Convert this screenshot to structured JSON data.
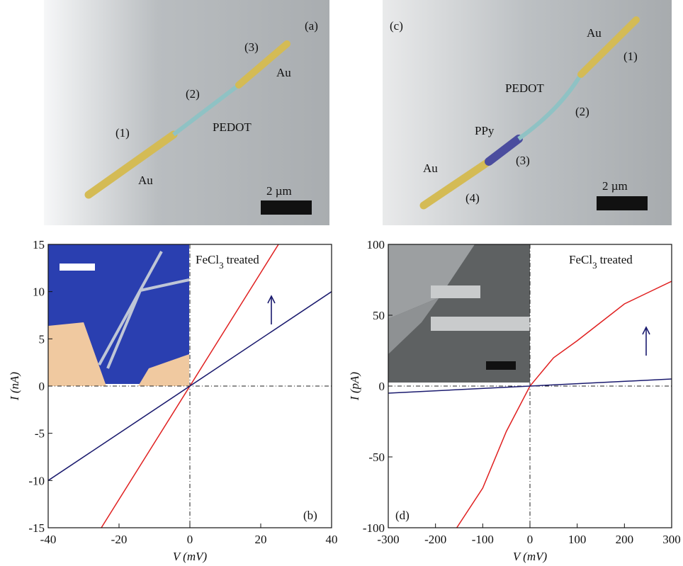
{
  "images": [
    {
      "panel": "(a)",
      "labels": [
        "(3)",
        "Au",
        "(2)",
        "PEDOT",
        "(1)",
        "Au"
      ],
      "scale_bar": "2 µm"
    },
    {
      "panel": "(c)",
      "labels": [
        "Au",
        "(1)",
        "PEDOT",
        "(2)",
        "PPy",
        "(3)",
        "Au",
        "(4)"
      ],
      "scale_bar": "2 µm"
    }
  ],
  "chart_data": [
    {
      "type": "line",
      "panel": "(b)",
      "x_label": "V (mV)",
      "y_label": "I (nA)",
      "annotation": {
        "text": "FeCl",
        "subscript": "3",
        "suffix": "treated"
      },
      "xlim": [
        -40,
        40
      ],
      "ylim": [
        -15,
        15
      ],
      "xticks": [
        -40,
        -20,
        0,
        20,
        40
      ],
      "yticks": [
        -15,
        -10,
        -5,
        0,
        5,
        10,
        15
      ],
      "series": [
        {
          "color": "#e02020",
          "x": [
            -25,
            25
          ],
          "values": [
            -15,
            15
          ]
        },
        {
          "color": "#1a1a6e",
          "x": [
            -40,
            40
          ],
          "values": [
            -10,
            10
          ]
        }
      ]
    },
    {
      "type": "line",
      "panel": "(d)",
      "x_label": "V (mV)",
      "y_label": "I (pA)",
      "annotation": {
        "text": "FeCl",
        "subscript": "3",
        "suffix": "treated"
      },
      "xlim": [
        -300,
        300
      ],
      "ylim": [
        -100,
        100
      ],
      "xticks": [
        -300,
        -200,
        -100,
        0,
        100,
        200,
        300
      ],
      "yticks": [
        -100,
        -50,
        0,
        50,
        100
      ],
      "series": [
        {
          "color": "#e02020",
          "x": [
            -155,
            -100,
            -50,
            0,
            50,
            100,
            150,
            200,
            250,
            300
          ],
          "values": [
            -100,
            -72,
            -32,
            0,
            20,
            32,
            45,
            58,
            66,
            74
          ]
        },
        {
          "color": "#1a1a6e",
          "x": [
            -300,
            300
          ],
          "values": [
            -5,
            5
          ]
        }
      ]
    }
  ]
}
